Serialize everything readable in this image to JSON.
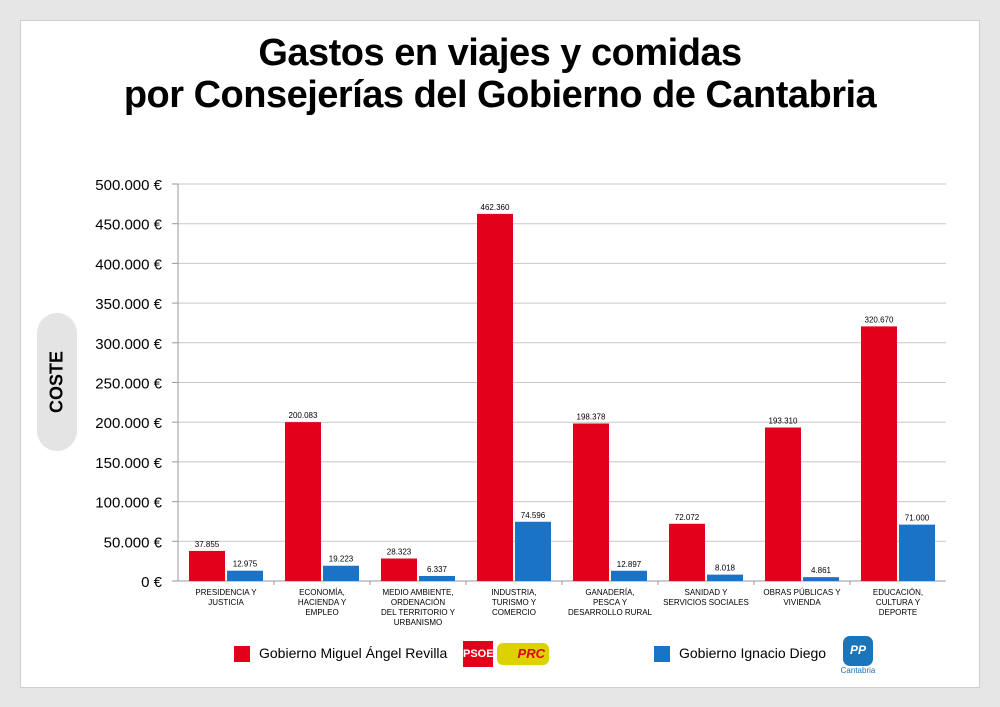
{
  "title_line1": "Gastos en viajes y comidas",
  "title_line2": "por Consejerías del Gobierno de Cantabria",
  "ylabel": "COSTE",
  "colors": {
    "red": "#e2001a",
    "blue": "#1a73c7",
    "grid": "#c8c8c8",
    "axis": "#999999"
  },
  "legend": {
    "red_label": "Gobierno Miguel Ángel Revilla",
    "blue_label": "Gobierno Ignacio Diego",
    "logo_psoe": "PSOE",
    "logo_prc": "PRC",
    "logo_pp": "PP",
    "logo_pp_sub": "Cantabria"
  },
  "chart_data": {
    "type": "bar",
    "title": "Gastos en viajes y comidas por Consejerías del Gobierno de Cantabria",
    "ylabel": "COSTE",
    "ylim": [
      0,
      500000
    ],
    "yticks": [
      0,
      50000,
      100000,
      150000,
      200000,
      250000,
      300000,
      350000,
      400000,
      450000,
      500000
    ],
    "ytick_labels": [
      "0 €",
      "50.000 €",
      "100.000 €",
      "150.000 €",
      "200.000 €",
      "250.000 €",
      "300.000 €",
      "350.000 €",
      "400.000 €",
      "450.000 €",
      "500.000 €"
    ],
    "grid": true,
    "legend_position": "bottom",
    "categories": [
      [
        "PRESIDENCIA Y",
        "JUSTICIA"
      ],
      [
        "ECONOMÍA,",
        "HACIENDA Y",
        "EMPLEO"
      ],
      [
        "MEDIO AMBIENTE,",
        "ORDENACIÓN",
        "DEL TERRITORIO Y",
        "URBANISMO"
      ],
      [
        "INDUSTRIA,",
        "TURISMO Y",
        "COMERCIO"
      ],
      [
        "GANADERÍA,",
        "PESCA Y",
        "DESARROLLO RURAL"
      ],
      [
        "SANIDAD Y",
        "SERVICIOS SOCIALES"
      ],
      [
        "OBRAS PÚBLICAS Y",
        "VIVIENDA"
      ],
      [
        "EDUCACIÓN,",
        "CULTURA Y",
        "DEPORTE"
      ]
    ],
    "series": [
      {
        "name": "Gobierno Miguel Ángel Revilla",
        "color": "#e2001a",
        "values": [
          37855,
          200083,
          28323,
          462360,
          198378,
          72072,
          193310,
          320670
        ],
        "labels": [
          "37.855",
          "200.083",
          "28.323",
          "462.360",
          "198.378",
          "72.072",
          "193.310",
          "320.670"
        ]
      },
      {
        "name": "Gobierno Ignacio Diego",
        "color": "#1a73c7",
        "values": [
          12975,
          19223,
          6337,
          74596,
          12897,
          8018,
          4861,
          71000
        ],
        "labels": [
          "12.975",
          "19.223",
          "6.337",
          "74.596",
          "12.897",
          "8.018",
          "4.861",
          "71.000"
        ]
      }
    ]
  }
}
